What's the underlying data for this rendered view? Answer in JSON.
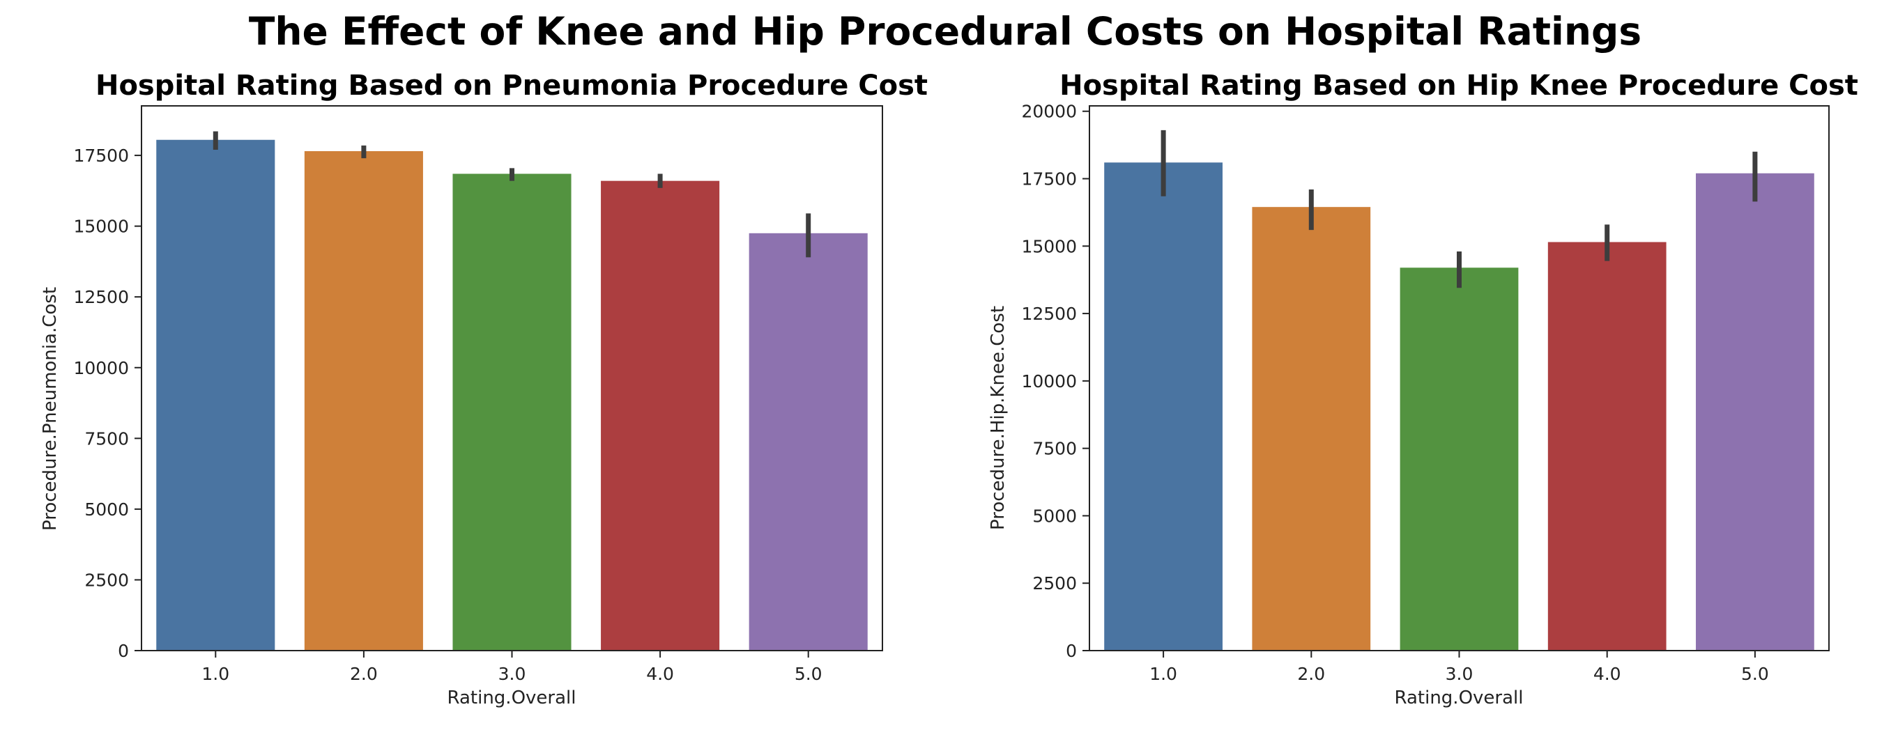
{
  "figure": {
    "title": "The Effect of Knee and Hip Procedural Costs on Hospital Ratings"
  },
  "chart_data": [
    {
      "type": "bar",
      "title": "Hospital Rating Based on Pneumonia Procedure Cost",
      "xlabel": "Rating.Overall",
      "ylabel": "Procedure.Pneumonia.Cost",
      "categories": [
        "1.0",
        "2.0",
        "3.0",
        "4.0",
        "5.0"
      ],
      "values": [
        18050,
        17650,
        16850,
        16600,
        14750
      ],
      "error_low": [
        17700,
        17400,
        16600,
        16350,
        13900
      ],
      "error_high": [
        18350,
        17850,
        17050,
        16850,
        15450
      ],
      "colors": [
        "#4a74a1",
        "#cf8039",
        "#539340",
        "#ac3e40",
        "#8d72af"
      ],
      "ylim": [
        0,
        19250
      ],
      "yticks": [
        0,
        2500,
        5000,
        7500,
        10000,
        12500,
        15000,
        17500
      ],
      "ytick_labels": [
        "0",
        "2500",
        "5000",
        "7500",
        "10000",
        "12500",
        "15000",
        "17500"
      ],
      "grid": false,
      "legend": "none"
    },
    {
      "type": "bar",
      "title": "Hospital Rating Based on Hip Knee Procedure Cost",
      "xlabel": "Rating.Overall",
      "ylabel": "Procedure.Hip.Knee.Cost",
      "categories": [
        "1.0",
        "2.0",
        "3.0",
        "4.0",
        "5.0"
      ],
      "values": [
        18100,
        16450,
        14200,
        15150,
        17700
      ],
      "error_low": [
        16850,
        15600,
        13450,
        14450,
        16650
      ],
      "error_high": [
        19300,
        17100,
        14800,
        15800,
        18500
      ],
      "colors": [
        "#4a74a1",
        "#cf8039",
        "#539340",
        "#ac3e40",
        "#8d72af"
      ],
      "ylim": [
        0,
        20200
      ],
      "yticks": [
        0,
        2500,
        5000,
        7500,
        10000,
        12500,
        15000,
        17500,
        20000
      ],
      "ytick_labels": [
        "0",
        "2500",
        "5000",
        "7500",
        "10000",
        "12500",
        "15000",
        "17500",
        "20000"
      ],
      "grid": false,
      "legend": "none"
    }
  ]
}
